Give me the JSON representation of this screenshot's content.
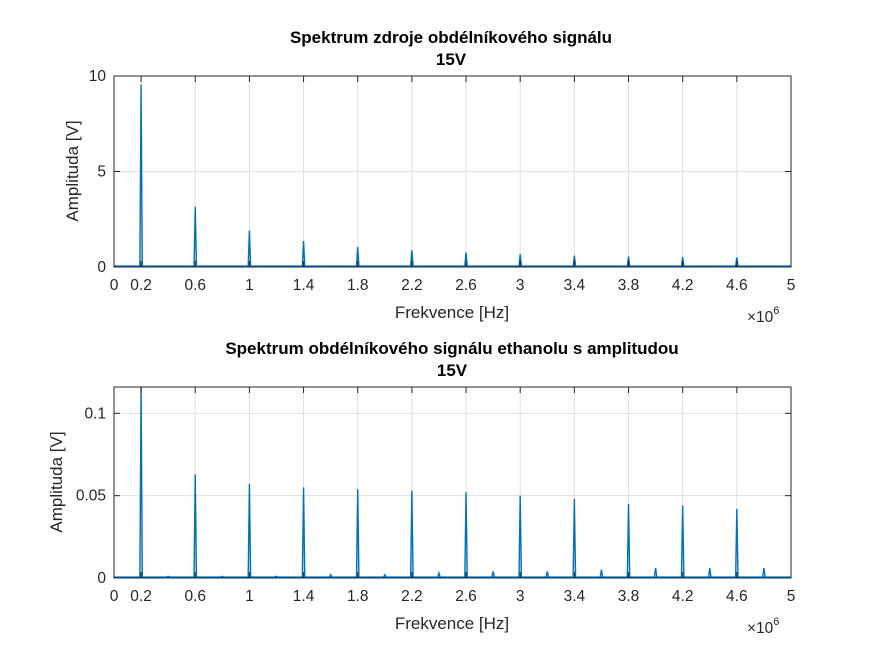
{
  "chart_data": [
    {
      "type": "line",
      "title_line1": "Spektrum zdroje obdélníkového signálu",
      "title_line2": "15V",
      "xlabel": "Frekvence [Hz]",
      "ylabel": "Amplituda [V]",
      "x_exponent": "×10",
      "x_exponent_power": "6",
      "xlim": [
        0,
        5000000
      ],
      "ylim": [
        0,
        10
      ],
      "xticks": [
        0,
        0.2,
        0.6,
        1,
        1.4,
        1.8,
        2.2,
        2.6,
        3,
        3.4,
        3.8,
        4.2,
        4.6,
        5
      ],
      "xtick_labels": [
        "0",
        "0.2",
        "0.6",
        "1",
        "1.4",
        "1.8",
        "2.2",
        "2.6",
        "3",
        "3.4",
        "3.8",
        "4.2",
        "4.6",
        "5"
      ],
      "yticks": [
        0,
        5,
        10
      ],
      "ytick_labels": [
        "0",
        "5",
        "10"
      ],
      "grid": true,
      "color": "#0072BD",
      "x": [
        200000,
        600000,
        1000000,
        1400000,
        1800000,
        2200000,
        2600000,
        3000000,
        3400000,
        3800000,
        4200000,
        4600000
      ],
      "y": [
        9.55,
        3.15,
        1.9,
        1.36,
        1.05,
        0.88,
        0.76,
        0.67,
        0.6,
        0.55,
        0.52,
        0.5
      ]
    },
    {
      "type": "line",
      "title_line1": "Spektrum obdélníkového signálu ethanolu s amplitudou",
      "title_line2": "15V",
      "xlabel": "Frekvence [Hz]",
      "ylabel": "Amplituda [V]",
      "x_exponent": "×10",
      "x_exponent_power": "6",
      "xlim": [
        0,
        5000000
      ],
      "ylim": [
        0,
        0.116
      ],
      "xticks": [
        0,
        0.2,
        0.6,
        1,
        1.4,
        1.8,
        2.2,
        2.6,
        3,
        3.4,
        3.8,
        4.2,
        4.6,
        5
      ],
      "xtick_labels": [
        "0",
        "0.2",
        "0.6",
        "1",
        "1.4",
        "1.8",
        "2.2",
        "2.6",
        "3",
        "3.4",
        "3.8",
        "4.2",
        "4.6",
        "5"
      ],
      "yticks": [
        0,
        0.05,
        0.1
      ],
      "ytick_labels": [
        "0",
        "0.05",
        "0.1"
      ],
      "grid": true,
      "color": "#0072BD",
      "x": [
        200000,
        400000,
        600000,
        800000,
        1000000,
        1200000,
        1400000,
        1600000,
        1800000,
        2000000,
        2200000,
        2400000,
        2600000,
        2800000,
        3000000,
        3200000,
        3400000,
        3600000,
        3800000,
        4000000,
        4200000,
        4400000,
        4600000,
        4800000
      ],
      "y": [
        0.116,
        0.001,
        0.063,
        0.001,
        0.057,
        0.001,
        0.055,
        0.002,
        0.054,
        0.002,
        0.053,
        0.003,
        0.052,
        0.004,
        0.05,
        0.004,
        0.048,
        0.005,
        0.045,
        0.006,
        0.044,
        0.006,
        0.042,
        0.006
      ]
    }
  ]
}
